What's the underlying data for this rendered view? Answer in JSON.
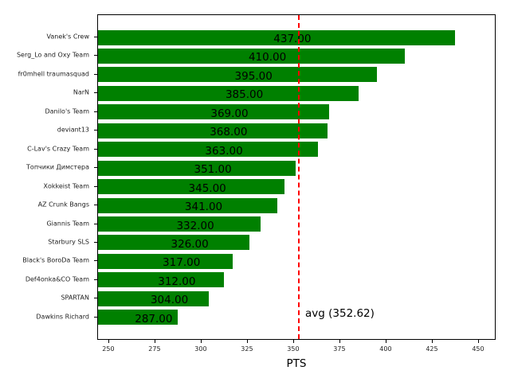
{
  "chart_data": {
    "type": "bar",
    "orientation": "horizontal",
    "title": "",
    "xlabel": "PTS",
    "ylabel": "",
    "xlim": [
      244,
      459.5
    ],
    "grid": false,
    "bar_color": "#008000",
    "categories": [
      "Vanek's Crew",
      "Serg_Lo and Oxy Team",
      "fr0mhell traumasquad",
      "NarN",
      "Danilo's Team",
      "deviant13",
      "C-Lav's Crazy Team",
      "Топчики Димстера",
      "Xokkeist Team",
      "AZ Crunk Bangs",
      "Giannis Team",
      "Starbury SLS",
      "Black's BoroDa Team",
      "Def4onka&CO Team",
      "SPARTAN",
      "Dawkins Richard"
    ],
    "values": [
      437,
      410,
      395,
      385,
      369,
      368,
      363,
      351,
      345,
      341,
      332,
      326,
      317,
      312,
      304,
      287
    ],
    "value_labels": [
      "437.00",
      "410.00",
      "395.00",
      "385.00",
      "369.00",
      "368.00",
      "363.00",
      "351.00",
      "345.00",
      "341.00",
      "332.00",
      "326.00",
      "317.00",
      "312.00",
      "304.00",
      "287.00"
    ],
    "x_ticks": [
      250,
      275,
      300,
      325,
      350,
      375,
      400,
      425,
      450
    ],
    "x_tick_labels": [
      "250",
      "275",
      "300",
      "325",
      "350",
      "375",
      "400",
      "425",
      "450"
    ],
    "reference_line": {
      "value": 352.62,
      "label": "avg (352.62)",
      "color": "#ff0000",
      "style": "dashed"
    }
  }
}
